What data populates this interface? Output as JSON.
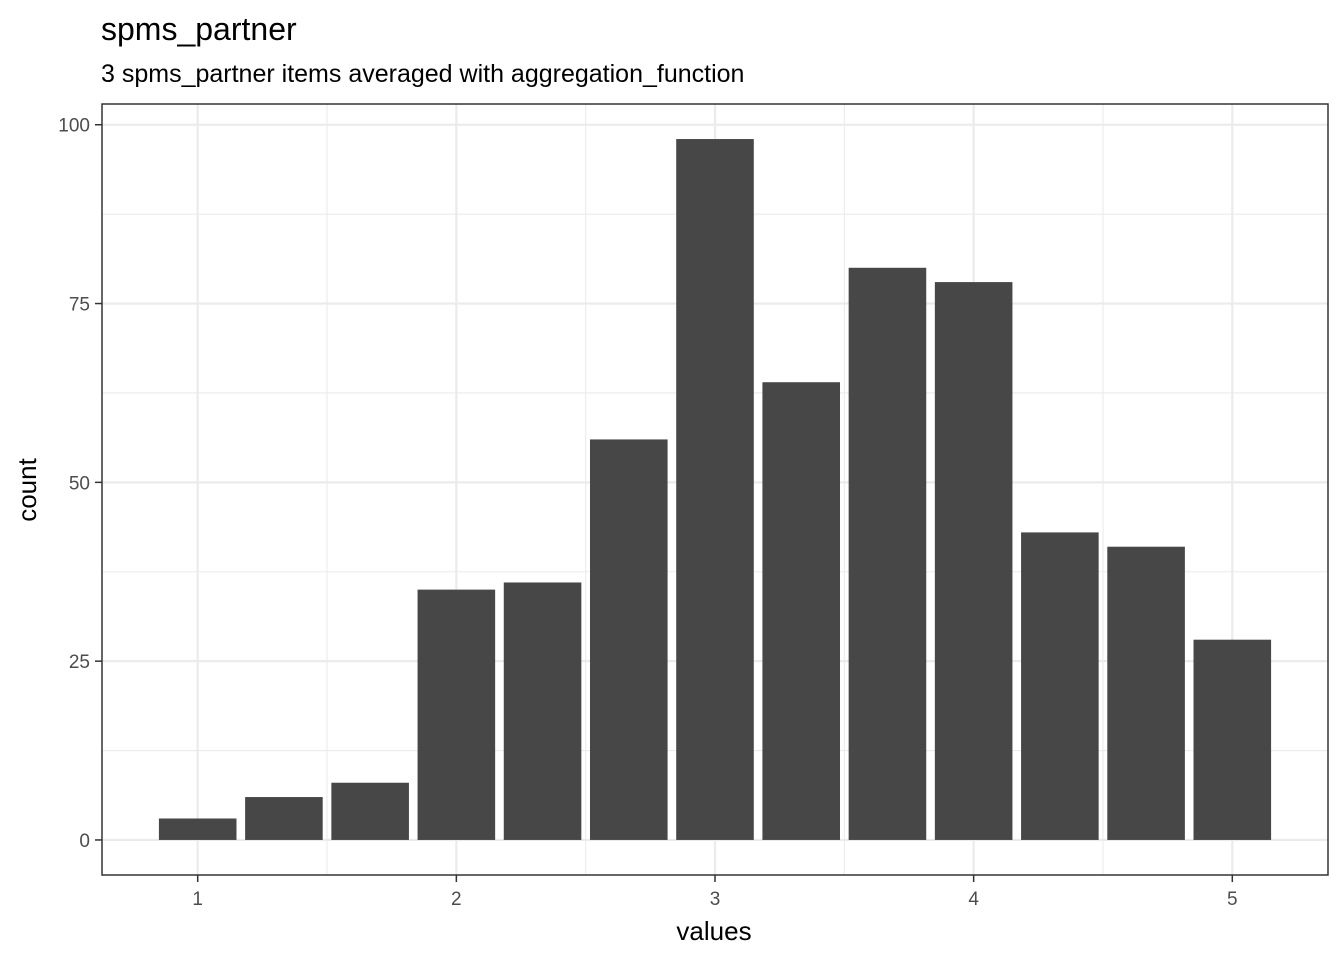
{
  "chart_data": {
    "type": "bar",
    "title": "spms_partner",
    "subtitle": "3 spms_partner items averaged with aggregation_function",
    "xlabel": "values",
    "ylabel": "count",
    "x": [
      1.0,
      1.3333,
      1.6667,
      2.0,
      2.3333,
      2.6667,
      3.0,
      3.3333,
      3.6667,
      4.0,
      4.3333,
      4.6667,
      5.0
    ],
    "values": [
      3,
      6,
      8,
      35,
      36,
      56,
      98,
      64,
      80,
      78,
      43,
      41,
      28
    ],
    "xlim": [
      0.63,
      5.37
    ],
    "ylim": [
      -4.9,
      102.9
    ],
    "x_ticks": [
      1,
      2,
      3,
      4,
      5
    ],
    "x_tick_labels": [
      "1",
      "2",
      "3",
      "4",
      "5"
    ],
    "y_ticks": [
      0,
      25,
      50,
      75,
      100
    ],
    "y_tick_labels": [
      "0",
      "25",
      "50",
      "75",
      "100"
    ],
    "grid": true,
    "bar_color": "#474747",
    "panel_border_color": "#333333",
    "grid_color": "#ebebeb"
  }
}
